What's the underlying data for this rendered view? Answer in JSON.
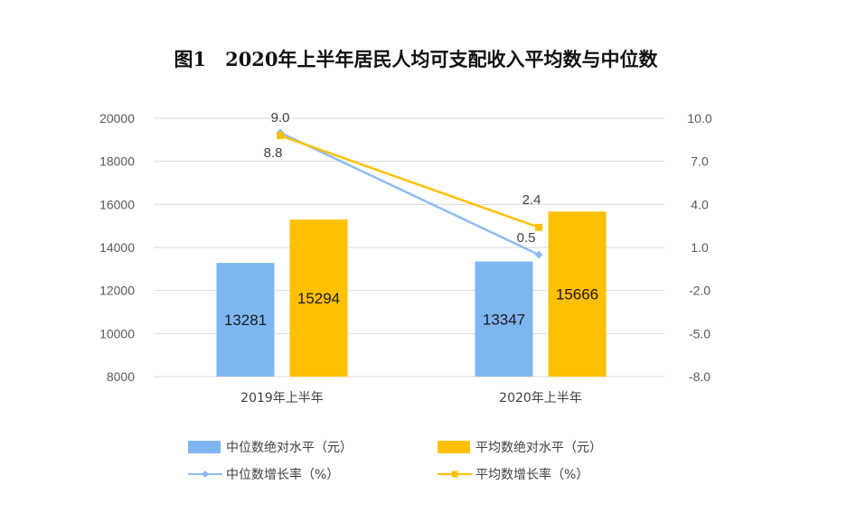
{
  "chart_data": {
    "type": "bar+line",
    "title": "图1　2020年上半年居民人均可支配收入平均数与中位数",
    "categories": [
      "2019年上半年",
      "2020年上半年"
    ],
    "bar_series": [
      {
        "name": "中位数绝对水平（元）",
        "color": "#7EB6F2",
        "values": [
          13281,
          13347
        ]
      },
      {
        "name": "平均数绝对水平（元）",
        "color": "#FFC000",
        "values": [
          15294,
          15666
        ]
      }
    ],
    "line_series": [
      {
        "name": "中位数增长率（%）",
        "color": "#8CBDF0",
        "marker": "diamond",
        "values": [
          9.0,
          0.5
        ]
      },
      {
        "name": "平均数增长率（%）",
        "color": "#FFC000",
        "marker": "square",
        "values": [
          8.8,
          2.4
        ]
      }
    ],
    "left_axis": {
      "min": 8000,
      "max": 20000,
      "ticks": [
        "8000",
        "10000",
        "12000",
        "14000",
        "16000",
        "18000",
        "20000"
      ]
    },
    "right_axis": {
      "min": -8.0,
      "max": 10.0,
      "ticks": [
        "-8.0",
        "-5.0",
        "-2.0",
        "1.0",
        "4.0",
        "7.0",
        "10.0"
      ]
    },
    "grid": true,
    "legend_position": "bottom"
  }
}
